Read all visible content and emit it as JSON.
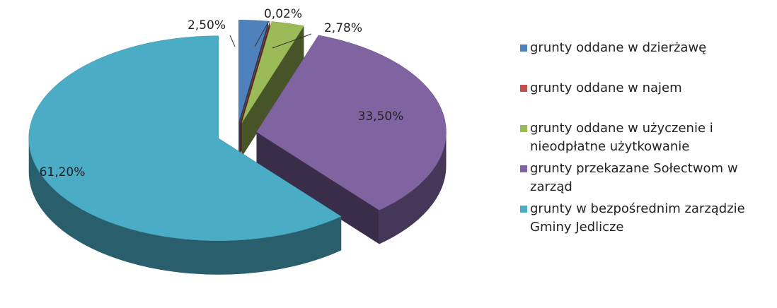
{
  "chart_data": {
    "type": "pie",
    "categories": [
      "grunty oddane w dzierżawę",
      "grunty oddane w najem",
      "grunty oddane w użyczenie i nieodpłatne użytkowanie",
      "grunty przekazane Sołectwom w zarząd",
      "grunty w bezpośrednim zarządzie Gminy Jedlicze"
    ],
    "values": [
      2.5,
      0.02,
      2.78,
      33.5,
      61.2
    ],
    "value_labels": [
      "2,50%",
      "0,02%",
      "2,78%",
      "33,50%",
      "61,20%"
    ],
    "colors": [
      "#4f81bd",
      "#c0504d",
      "#9bbb59",
      "#8064a2",
      "#4bacc6"
    ],
    "legend": "right"
  }
}
